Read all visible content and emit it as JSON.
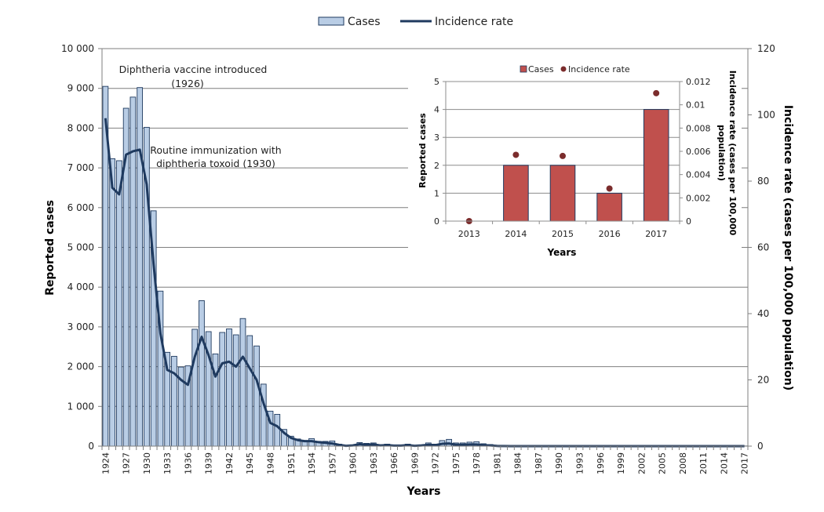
{
  "chart_data": [
    {
      "type": "bar+line",
      "title": "",
      "xlabel": "Years",
      "ylabel": "Reported cases",
      "y2label": "Incidence rate (cases per 100,000 population)",
      "ylim": [
        0,
        10000
      ],
      "y2lim": [
        0,
        120
      ],
      "yticks": [
        "0",
        "1 000",
        "2 000",
        "3 000",
        "4 000",
        "5 000",
        "6 000",
        "7 000",
        "8 000",
        "9 000",
        "10 000"
      ],
      "y2ticks": [
        "0",
        "20",
        "40",
        "60",
        "80",
        "100",
        "120"
      ],
      "grid": true,
      "legend": {
        "placement": "top-center",
        "entries": [
          "Cases",
          "Incidence rate"
        ]
      },
      "colors": {
        "bar_fill": "#b9cde5",
        "bar_stroke": "#1f3a5f",
        "line": "#1f3a5f",
        "grid": "#7f7f7f"
      },
      "x_start": 1924,
      "x_end": 2017,
      "xtick_labels": [
        "1924",
        "1927",
        "1930",
        "1933",
        "1936",
        "1939",
        "1942",
        "1945",
        "1948",
        "1951",
        "1954",
        "1957",
        "1960",
        "1963",
        "1966",
        "1969",
        "1972",
        "1975",
        "1978",
        "1981",
        "1984",
        "1987",
        "1990",
        "1993",
        "1996",
        "1999",
        "2002",
        "2005",
        "2008",
        "2011",
        "2014",
        "2017"
      ],
      "series": [
        {
          "name": "Cases",
          "axis": "left",
          "values": [
            9050,
            7230,
            7180,
            8500,
            8780,
            9020,
            8020,
            5920,
            3900,
            2360,
            2260,
            1990,
            2020,
            2940,
            3660,
            2880,
            2320,
            2860,
            2950,
            2800,
            3210,
            2780,
            2520,
            1560,
            880,
            800,
            420,
            250,
            180,
            120,
            190,
            120,
            120,
            130,
            50,
            10,
            20,
            90,
            70,
            80,
            20,
            50,
            20,
            20,
            50,
            20,
            30,
            80,
            50,
            140,
            170,
            80,
            80,
            100,
            110,
            60,
            40,
            10,
            5,
            3,
            2,
            2,
            2,
            1,
            1,
            1,
            1,
            1,
            1,
            1,
            1,
            1,
            1,
            1,
            1,
            1,
            1,
            1,
            1,
            1,
            1,
            1,
            1,
            1,
            1,
            1,
            1,
            0,
            1,
            0,
            2,
            2,
            1,
            4
          ]
        },
        {
          "name": "Incidence rate",
          "axis": "right",
          "values": [
            99,
            78,
            76,
            88,
            89,
            89.5,
            79,
            55,
            34,
            23,
            22,
            20,
            18.5,
            27,
            33,
            27.5,
            21,
            25,
            25.5,
            24,
            27,
            23.5,
            20,
            13,
            7,
            6,
            4,
            2.5,
            1.8,
            1.5,
            1.5,
            1.2,
            1,
            0.8,
            0.4,
            0.1,
            0.2,
            0.6,
            0.4,
            0.5,
            0.2,
            0.3,
            0.15,
            0.15,
            0.3,
            0.1,
            0.2,
            0.4,
            0.3,
            0.7,
            0.8,
            0.4,
            0.4,
            0.5,
            0.5,
            0.3,
            0.2,
            0.05,
            0.02,
            0.01,
            0.01,
            0.01,
            0.01,
            0,
            0,
            0,
            0,
            0,
            0,
            0,
            0,
            0,
            0,
            0,
            0,
            0,
            0,
            0,
            0,
            0,
            0,
            0,
            0,
            0,
            0,
            0,
            0,
            0,
            0,
            0,
            0.006,
            0.006,
            0.003,
            0.011
          ]
        }
      ],
      "annotations": [
        {
          "text_line1": "Diphtheria vaccine introduced",
          "text_line2": "(1926)"
        },
        {
          "text_line1": "Routine immunization with",
          "text_line2": "diphtheria toxoid (1930)"
        }
      ]
    },
    {
      "type": "bar+scatter",
      "title": "",
      "xlabel": "Years",
      "ylabel": "Reported cases",
      "y2label_line1": "Incidence rate (cases per 100,000",
      "y2label_line2": "population)",
      "categories": [
        "2013",
        "2014",
        "2015",
        "2016",
        "2017"
      ],
      "ylim": [
        0,
        5
      ],
      "y2lim": [
        0,
        0.012
      ],
      "yticks": [
        "0",
        "1",
        "2",
        "3",
        "4",
        "5"
      ],
      "y2ticks": [
        "0",
        "0.002",
        "0.004",
        "0.006",
        "0.008",
        "0.01",
        "0.012"
      ],
      "grid": true,
      "legend": {
        "placement": "top-center",
        "entries": [
          "Cases",
          "Incidence rate"
        ]
      },
      "colors": {
        "bar_fill": "#c0504d",
        "bar_stroke": "#1f3a5f",
        "dot": "#7b2c2c"
      },
      "series": [
        {
          "name": "Cases",
          "axis": "left",
          "values": [
            0,
            2,
            2,
            1,
            4
          ]
        },
        {
          "name": "Incidence rate",
          "axis": "right",
          "values": [
            0,
            0.0057,
            0.0056,
            0.0028,
            0.011
          ]
        }
      ]
    }
  ]
}
